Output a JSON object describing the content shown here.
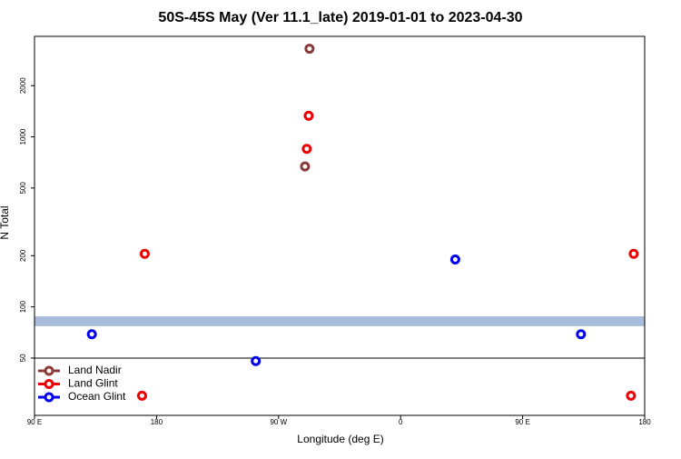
{
  "chart_data": {
    "type": "scatter",
    "title": "50S-45S May (Ver 11.1_late)   2019-01-01 to 2023-04-30",
    "x_label": "Longitude (deg E)",
    "y_label": "N Total",
    "xlim": [
      90,
      540
    ],
    "xticks": [
      {
        "value": 90,
        "label": "90 E"
      },
      {
        "value": 180,
        "label": "180"
      },
      {
        "value": 270,
        "label": "90 W"
      },
      {
        "value": 360,
        "label": "0"
      },
      {
        "value": 450,
        "label": "90 E"
      },
      {
        "value": 540,
        "label": "180"
      }
    ],
    "ylim": [
      23,
      3900
    ],
    "log_y": true,
    "yticks": [
      50,
      100,
      200,
      500,
      1000,
      2000
    ],
    "grid": false,
    "legend": "lower left",
    "band": {
      "range": [
        77,
        88
      ],
      "color": "#a8bddb"
    },
    "series": [
      {
        "name": "Land Nadir",
        "color": "#8b3a3a",
        "x": [
          292.8,
          289.5
        ],
        "values": [
          3300,
          670
        ]
      },
      {
        "name": "Land Glint",
        "color": "#ee0000",
        "x": [
          171.3,
          292.2,
          290.8,
          531.9,
          169.3,
          529.9
        ],
        "values": [
          205,
          1330,
          850,
          205,
          30,
          30
        ]
      },
      {
        "name": "Ocean Glint",
        "color": "#0000ee",
        "x": [
          132.3,
          253.2,
          400.3,
          493
        ],
        "values": [
          69,
          48,
          190,
          69
        ]
      }
    ]
  }
}
